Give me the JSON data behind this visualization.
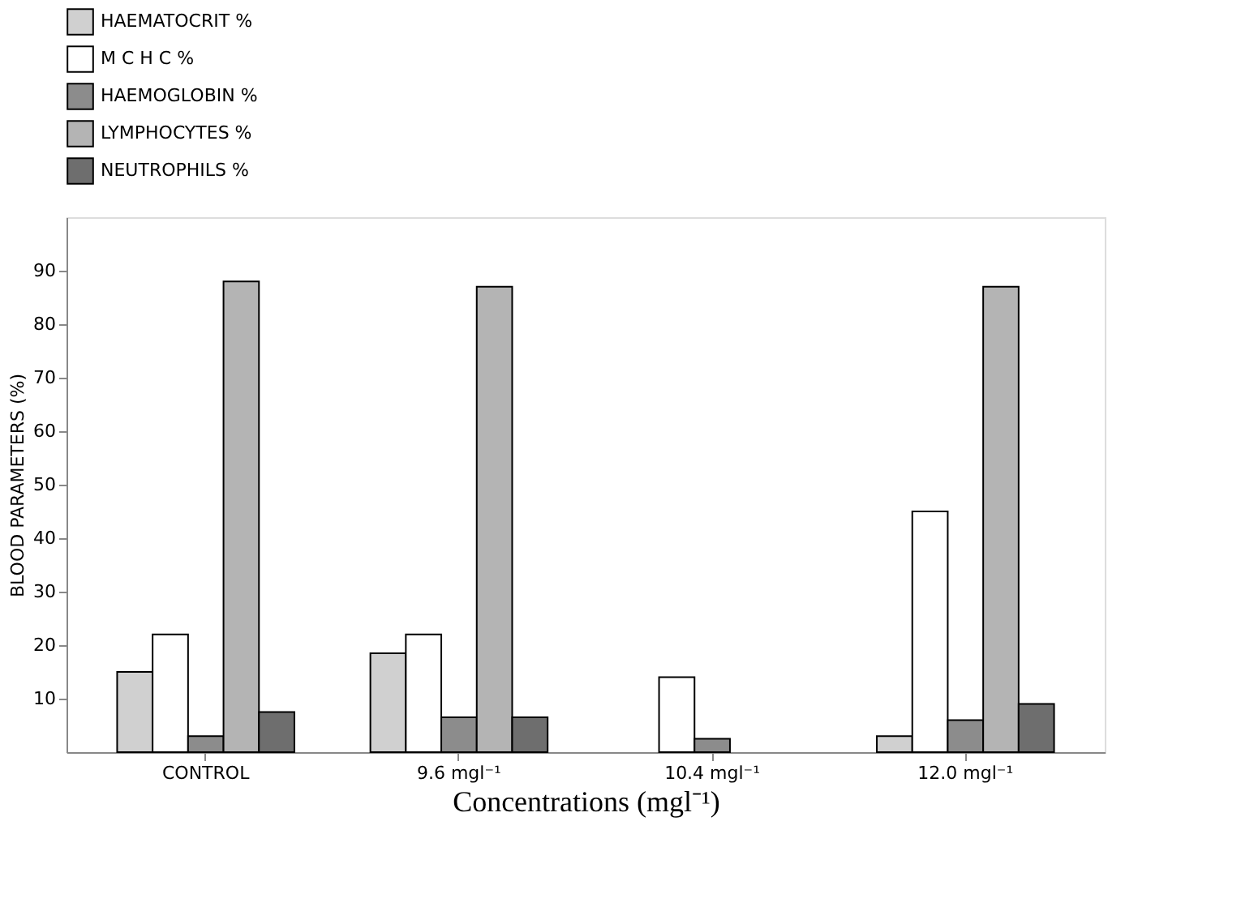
{
  "chart_data": {
    "type": "bar",
    "xlabel": "Concentrations (mgl⁻¹)",
    "ylabel": "BLOOD PARAMETERS (%)",
    "categories": [
      "CONTROL",
      "9.6 mgl⁻¹",
      "10.4 mgl⁻¹",
      "12.0 mgl⁻¹"
    ],
    "series": [
      {
        "name": "HAEMATOCRIT %",
        "color": "#d0d0d0",
        "values": [
          15,
          18.5,
          null,
          3
        ]
      },
      {
        "name": "M C H C %",
        "color": "#ffffff",
        "values": [
          22,
          22,
          14,
          45
        ]
      },
      {
        "name": "HAEMOGLOBIN %",
        "color": "#8c8c8c",
        "values": [
          3,
          6.5,
          2.5,
          6
        ]
      },
      {
        "name": "LYMPHOCYTES %",
        "color": "#b4b4b4",
        "values": [
          88,
          87,
          null,
          87
        ]
      },
      {
        "name": "NEUTROPHILS %",
        "color": "#6e6e6e",
        "values": [
          7.5,
          6.5,
          null,
          9
        ]
      }
    ],
    "ylim": [
      0,
      100
    ],
    "yticks": [
      10,
      20,
      30,
      40,
      50,
      60,
      70,
      80,
      90
    ],
    "grid": false,
    "legend": "top"
  }
}
